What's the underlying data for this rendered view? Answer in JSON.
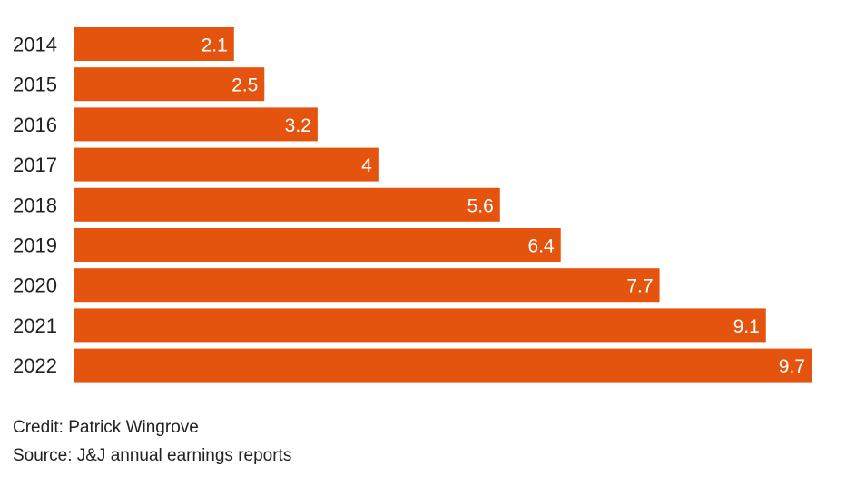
{
  "chart_data": {
    "type": "bar",
    "orientation": "horizontal",
    "categories": [
      "2014",
      "2015",
      "2016",
      "2017",
      "2018",
      "2019",
      "2020",
      "2021",
      "2022"
    ],
    "values": [
      2.1,
      2.5,
      3.2,
      4,
      5.6,
      6.4,
      7.7,
      9.1,
      9.7
    ],
    "value_labels": [
      "2.1",
      "2.5",
      "3.2",
      "4",
      "5.6",
      "6.4",
      "7.7",
      "9.1",
      "9.7"
    ],
    "title": "",
    "xlabel": "",
    "ylabel": "",
    "xlim": [
      0,
      9.7
    ],
    "grid": false,
    "colors": {
      "bar": "#e5540f",
      "value_label": "#ffffff"
    }
  },
  "footer": {
    "credit": "Credit: Patrick Wingrove",
    "source": "Source: J&J annual earnings reports"
  }
}
